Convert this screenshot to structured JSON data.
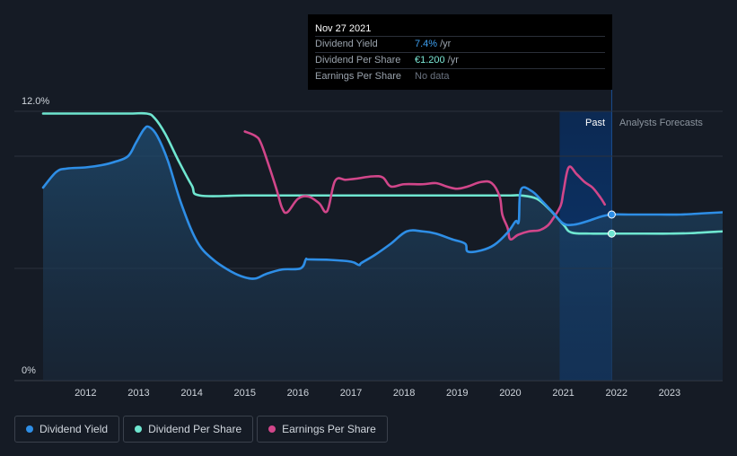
{
  "tooltip": {
    "date": "Nov 27 2021",
    "rows": [
      {
        "label": "Dividend Yield",
        "value": "7.4%",
        "unit": "/yr"
      },
      {
        "label": "Dividend Per Share",
        "value": "€1.200",
        "unit": "/yr"
      },
      {
        "label": "Earnings Per Share",
        "value": "No data",
        "unit": ""
      }
    ]
  },
  "labels": {
    "past": "Past",
    "forecast": "Analysts Forecasts",
    "y_top": "12.0%",
    "y_bottom": "0%"
  },
  "legend": [
    {
      "label": "Dividend Yield",
      "color": "#2e8ee6"
    },
    {
      "label": "Dividend Per Share",
      "color": "#6fe6d0"
    },
    {
      "label": "Earnings Per Share",
      "color": "#d1468a"
    }
  ],
  "chart_data": {
    "type": "line",
    "x_ticks": [
      "2012",
      "2013",
      "2014",
      "2015",
      "2016",
      "2017",
      "2018",
      "2019",
      "2020",
      "2021",
      "2022",
      "2023"
    ],
    "xlim": [
      2011.2,
      2024.0
    ],
    "ylim": [
      0,
      12.0
    ],
    "y_ticks": [
      "12.0%",
      "0%"
    ],
    "past_end": 2021.91,
    "forecast_start": 2021.91,
    "colors": {
      "yield": "#2e8ee6",
      "dps": "#6fe6d0",
      "eps": "#d1468a"
    },
    "series": [
      {
        "name": "Dividend Yield",
        "key": "yield",
        "unit": "%",
        "x": [
          2011.2,
          2011.45,
          2011.65,
          2012.0,
          2012.3,
          2012.55,
          2012.8,
          2012.95,
          2013.1,
          2013.2,
          2013.35,
          2013.55,
          2013.8,
          2014.1,
          2014.4,
          2014.75,
          2015.0,
          2015.2,
          2015.4,
          2015.7,
          2016.05,
          2016.15,
          2016.2,
          2016.6,
          2017.0,
          2017.15,
          2017.2,
          2017.45,
          2017.75,
          2018.05,
          2018.35,
          2018.6,
          2018.9,
          2019.15,
          2019.2,
          2019.45,
          2019.7,
          2019.95,
          2020.1,
          2020.16,
          2020.2,
          2020.4,
          2020.6,
          2020.8,
          2021.0,
          2021.2,
          2021.45,
          2021.7,
          2021.91,
          2022.3,
          2022.8,
          2023.2,
          2023.6,
          2024.0
        ],
        "values": [
          8.6,
          9.3,
          9.45,
          9.5,
          9.6,
          9.75,
          10.0,
          10.6,
          11.2,
          11.3,
          10.9,
          9.8,
          7.9,
          6.2,
          5.4,
          4.85,
          4.6,
          4.55,
          4.75,
          4.95,
          5.0,
          5.4,
          5.4,
          5.38,
          5.3,
          5.15,
          5.25,
          5.6,
          6.1,
          6.65,
          6.65,
          6.55,
          6.3,
          6.1,
          5.75,
          5.8,
          6.05,
          6.6,
          7.1,
          7.1,
          8.5,
          8.45,
          8.0,
          7.5,
          7.0,
          6.95,
          7.1,
          7.3,
          7.4,
          7.4,
          7.4,
          7.4,
          7.45,
          7.5
        ]
      },
      {
        "name": "Dividend Per Share",
        "key": "dps",
        "unit": "%",
        "x": [
          2011.2,
          2012.0,
          2012.8,
          2013.15,
          2013.3,
          2013.5,
          2013.75,
          2014.0,
          2014.15,
          2015.0,
          2016.0,
          2017.0,
          2018.0,
          2019.0,
          2019.5,
          2020.0,
          2020.2,
          2020.5,
          2020.75,
          2021.0,
          2021.15,
          2021.5,
          2021.91,
          2022.5,
          2023.0,
          2023.4,
          2024.0
        ],
        "values": [
          11.9,
          11.9,
          11.9,
          11.9,
          11.7,
          11.0,
          9.8,
          8.7,
          8.25,
          8.25,
          8.25,
          8.25,
          8.25,
          8.25,
          8.25,
          8.25,
          8.25,
          8.1,
          7.6,
          6.95,
          6.6,
          6.55,
          6.55,
          6.55,
          6.55,
          6.57,
          6.65
        ]
      },
      {
        "name": "Earnings Per Share",
        "key": "eps",
        "unit": "%",
        "x": [
          2015.0,
          2015.2,
          2015.3,
          2015.45,
          2015.6,
          2015.7,
          2015.8,
          2016.0,
          2016.2,
          2016.4,
          2016.55,
          2016.7,
          2016.9,
          2017.1,
          2017.4,
          2017.6,
          2017.75,
          2018.0,
          2018.35,
          2018.6,
          2018.8,
          2019.0,
          2019.2,
          2019.45,
          2019.65,
          2019.8,
          2019.85,
          2019.95,
          2020.0,
          2020.15,
          2020.35,
          2020.55,
          2020.7,
          2020.8,
          2020.95,
          2021.0,
          2021.1,
          2021.25,
          2021.4,
          2021.55,
          2021.7,
          2021.78
        ],
        "values": [
          11.1,
          10.9,
          10.6,
          9.6,
          8.5,
          7.7,
          7.5,
          8.1,
          8.2,
          7.9,
          7.55,
          8.9,
          8.95,
          9.0,
          9.1,
          9.05,
          8.65,
          8.75,
          8.75,
          8.8,
          8.65,
          8.55,
          8.65,
          8.85,
          8.8,
          8.2,
          7.4,
          6.8,
          6.3,
          6.5,
          6.65,
          6.7,
          6.9,
          7.2,
          7.8,
          8.4,
          9.5,
          9.2,
          8.85,
          8.6,
          8.15,
          7.85
        ]
      }
    ]
  }
}
